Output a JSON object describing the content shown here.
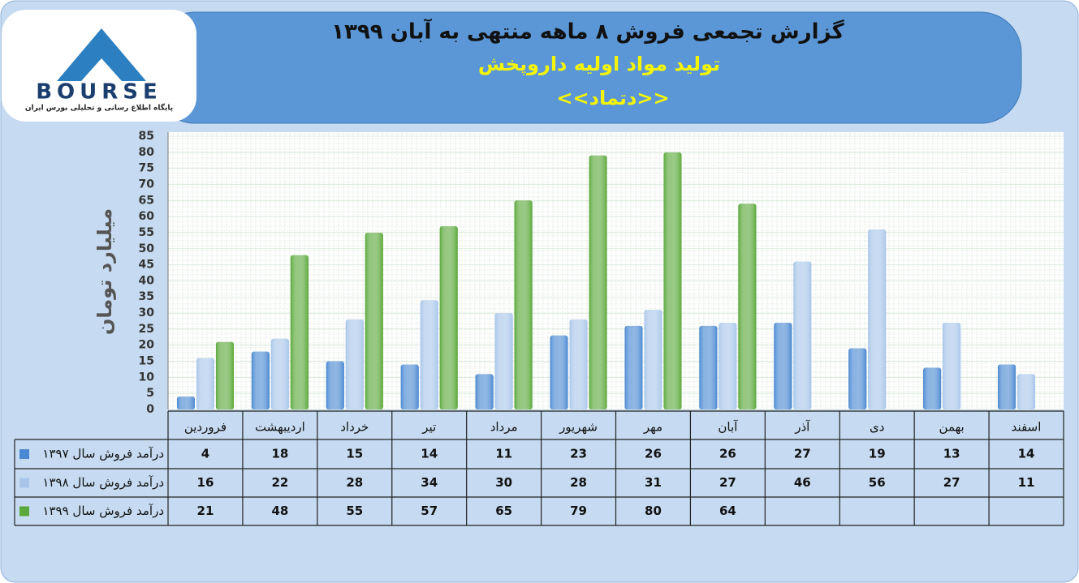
{
  "logo": {
    "name": "BOURSE",
    "tagline": "پایگاه اطلاع رسانی و تحلیلی بورس ایران"
  },
  "chart_data": {
    "type": "bar",
    "title": "گزارش تجمعی فروش ۸ ماهه منتهی به آبان ۱۳۹۹",
    "subtitle": "تولید مواد اولیه داروپخش",
    "symbol": "<<دتماد>>",
    "y_label": "میلیارد تومان",
    "categories": [
      "فروردین",
      "اردیبهشت",
      "خرداد",
      "تیر",
      "مرداد",
      "شهریور",
      "مهر",
      "آبان",
      "آذر",
      "دی",
      "بهمن",
      "اسفند"
    ],
    "series": [
      {
        "name": "درآمد فروش سال ۱۳۹۷",
        "color": "#4a89d2",
        "values": [
          4,
          18,
          15,
          14,
          11,
          23,
          26,
          26,
          27,
          19,
          13,
          14
        ]
      },
      {
        "name": "درآمد فروش سال ۱۳۹۸",
        "color": "#a9c6ea",
        "values": [
          16,
          22,
          28,
          34,
          30,
          28,
          31,
          27,
          46,
          56,
          27,
          11
        ]
      },
      {
        "name": "درآمد فروش سال ۱۳۹۹",
        "color": "#5aa83a",
        "values": [
          21,
          48,
          55,
          57,
          65,
          79,
          80,
          64,
          null,
          null,
          null,
          null
        ]
      }
    ],
    "ylim": [
      0,
      85
    ],
    "yticks": [
      0,
      5,
      10,
      15,
      20,
      25,
      30,
      35,
      40,
      45,
      50,
      55,
      60,
      65,
      70,
      75,
      80,
      85
    ],
    "grid": true
  }
}
